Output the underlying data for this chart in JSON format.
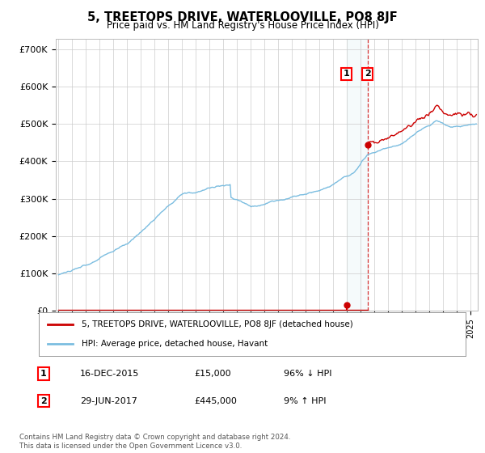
{
  "title": "5, TREETOPS DRIVE, WATERLOOVILLE, PO8 8JF",
  "subtitle": "Price paid vs. HM Land Registry's House Price Index (HPI)",
  "ylabel_ticks": [
    "£0",
    "£100K",
    "£200K",
    "£300K",
    "£400K",
    "£500K",
    "£600K",
    "£700K"
  ],
  "ytick_values": [
    0,
    100000,
    200000,
    300000,
    400000,
    500000,
    600000,
    700000
  ],
  "ylim": [
    0,
    730000
  ],
  "xlim_start": 1994.8,
  "xlim_end": 2025.5,
  "hpi_color": "#7bbde0",
  "price_color": "#cc0000",
  "sale1_date": 2015.96,
  "sale1_price": 15000,
  "sale2_date": 2017.49,
  "sale2_price": 445000,
  "legend_line1": "5, TREETOPS DRIVE, WATERLOOVILLE, PO8 8JF (detached house)",
  "legend_line2": "HPI: Average price, detached house, Havant",
  "annotation1_label": "1",
  "annotation1_date_str": "16-DEC-2015",
  "annotation1_price_str": "£15,000",
  "annotation1_hpi_str": "96% ↓ HPI",
  "annotation2_label": "2",
  "annotation2_date_str": "29-JUN-2017",
  "annotation2_price_str": "£445,000",
  "annotation2_hpi_str": "9% ↑ HPI",
  "footnote": "Contains HM Land Registry data © Crown copyright and database right 2024.\nThis data is licensed under the Open Government Licence v3.0.",
  "background_color": "#ffffff",
  "grid_color": "#cccccc"
}
